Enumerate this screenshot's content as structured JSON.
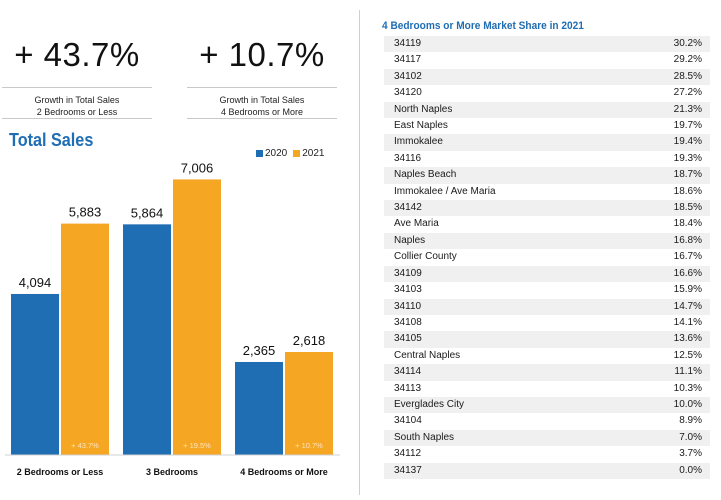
{
  "stats": [
    {
      "value": "+ 43.7%",
      "caption_line1": "Growth in Total Sales",
      "caption_line2": "2 Bedrooms or Less"
    },
    {
      "value": "+ 10.7%",
      "caption_line1": "Growth in Total Sales",
      "caption_line2": "4 Bedrooms or More"
    }
  ],
  "chart_data": {
    "type": "bar",
    "title": "Total Sales",
    "categories": [
      "2 Bedrooms or Less",
      "3 Bedrooms",
      "4 Bedrooms or More"
    ],
    "series": [
      {
        "name": "2020",
        "color": "#1f6db3",
        "values": [
          4094,
          5864,
          2365
        ],
        "labels": [
          "4,094",
          "5,864",
          "2,365"
        ]
      },
      {
        "name": "2021",
        "color": "#f5a623",
        "values": [
          5883,
          7006,
          2618
        ],
        "labels": [
          "5,883",
          "7,006",
          "2,618"
        ]
      }
    ],
    "growth_labels": [
      "+ 43.7%",
      "+ 19.5%",
      "+ 10.7%"
    ],
    "legend_position": "top-right",
    "ylim": [
      0,
      7500
    ]
  },
  "market_share": {
    "title": "4 Bedrooms or More Market Share in 2021",
    "rows": [
      {
        "area": "34119",
        "share": "30.2%"
      },
      {
        "area": "34117",
        "share": "29.2%"
      },
      {
        "area": "34102",
        "share": "28.5%"
      },
      {
        "area": "34120",
        "share": "27.2%"
      },
      {
        "area": "North Naples",
        "share": "21.3%"
      },
      {
        "area": "East Naples",
        "share": "19.7%"
      },
      {
        "area": "Immokalee",
        "share": "19.4%"
      },
      {
        "area": "34116",
        "share": "19.3%"
      },
      {
        "area": "Naples Beach",
        "share": "18.7%"
      },
      {
        "area": "Immokalee / Ave Maria",
        "share": "18.6%"
      },
      {
        "area": "34142",
        "share": "18.5%"
      },
      {
        "area": "Ave Maria",
        "share": "18.4%"
      },
      {
        "area": "Naples",
        "share": "16.8%"
      },
      {
        "area": "Collier County",
        "share": "16.7%"
      },
      {
        "area": "34109",
        "share": "16.6%"
      },
      {
        "area": "34103",
        "share": "15.9%"
      },
      {
        "area": "34110",
        "share": "14.7%"
      },
      {
        "area": "34108",
        "share": "14.1%"
      },
      {
        "area": "34105",
        "share": "13.6%"
      },
      {
        "area": "Central Naples",
        "share": "12.5%"
      },
      {
        "area": "34114",
        "share": "11.1%"
      },
      {
        "area": "34113",
        "share": "10.3%"
      },
      {
        "area": "Everglades City",
        "share": "10.0%"
      },
      {
        "area": "34104",
        "share": "8.9%"
      },
      {
        "area": "South Naples",
        "share": "7.0%"
      },
      {
        "area": "34112",
        "share": "3.7%"
      },
      {
        "area": "34137",
        "share": "0.0%"
      }
    ]
  }
}
